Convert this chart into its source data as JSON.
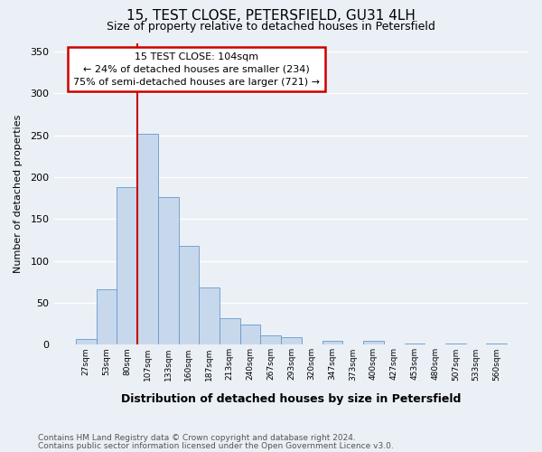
{
  "title": "15, TEST CLOSE, PETERSFIELD, GU31 4LH",
  "subtitle": "Size of property relative to detached houses in Petersfield",
  "xlabel": "Distribution of detached houses by size in Petersfield",
  "ylabel": "Number of detached properties",
  "bar_labels": [
    "27sqm",
    "53sqm",
    "80sqm",
    "107sqm",
    "133sqm",
    "160sqm",
    "187sqm",
    "213sqm",
    "240sqm",
    "267sqm",
    "293sqm",
    "320sqm",
    "347sqm",
    "373sqm",
    "400sqm",
    "427sqm",
    "453sqm",
    "480sqm",
    "507sqm",
    "533sqm",
    "560sqm"
  ],
  "bar_values": [
    7,
    66,
    188,
    252,
    176,
    118,
    68,
    32,
    24,
    11,
    9,
    0,
    5,
    0,
    5,
    0,
    2,
    0,
    2,
    0,
    2
  ],
  "bar_color": "#c8d8ec",
  "bar_edge_color": "#6699cc",
  "vline_color": "#cc0000",
  "vline_x_idx": 3,
  "annotation_title": "15 TEST CLOSE: 104sqm",
  "annotation_line1": "← 24% of detached houses are smaller (234)",
  "annotation_line2": "75% of semi-detached houses are larger (721) →",
  "annotation_box_color": "white",
  "annotation_box_edge": "#cc0000",
  "ylim": [
    0,
    360
  ],
  "yticks": [
    0,
    50,
    100,
    150,
    200,
    250,
    300,
    350
  ],
  "footnote1": "Contains HM Land Registry data © Crown copyright and database right 2024.",
  "footnote2": "Contains public sector information licensed under the Open Government Licence v3.0.",
  "bg_color": "#eaf0f6"
}
